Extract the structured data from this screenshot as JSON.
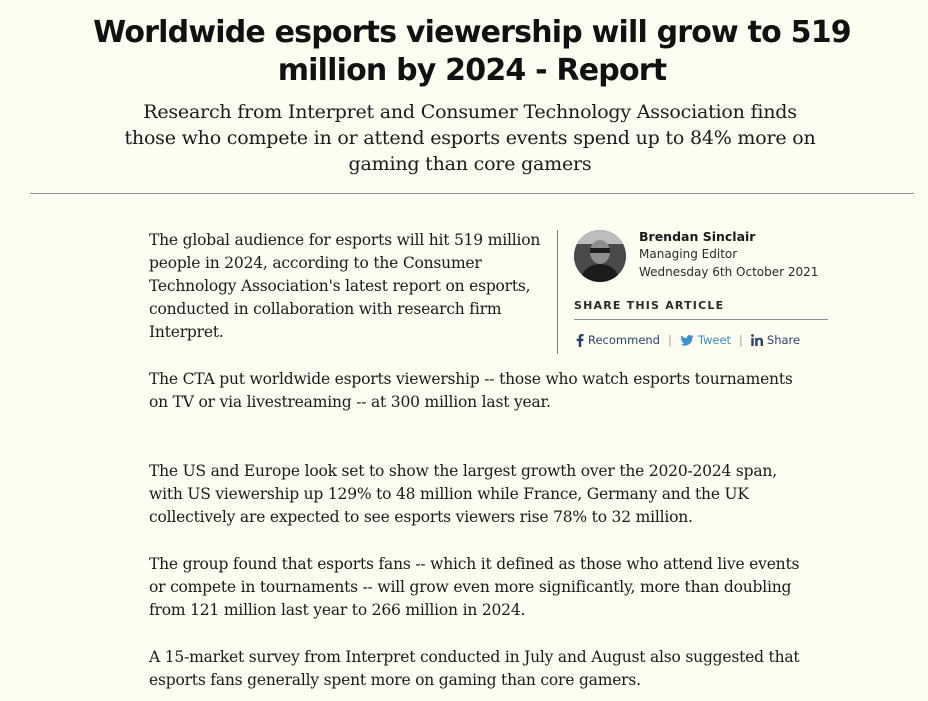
{
  "article": {
    "headline": "Worldwide esports viewership will grow to 519 million by 2024 - Report",
    "dek": "Research from Interpret and Consumer Technology Association finds those who compete in or attend esports events spend up to 84% more on gaming than core gamers",
    "paragraphs": [
      "The global audience for esports will hit 519 million people in 2024, according to the Consumer Technology Association's latest report on esports, conducted in collaboration with research firm Interpret.",
      "The CTA put worldwide esports viewership -- those who watch esports tournaments on TV or via livestreaming -- at 300 million last year.",
      "The US and Europe look set to show the largest growth over the 2020-2024 span, with US viewership up 129% to 48 million while France, Germany and the UK collectively are expected to see esports viewers rise 78% to 32 million.",
      "The group found that esports fans -- which it defined as those who attend live events or compete in tournaments -- will grow even more significantly, more than doubling from 121 million last year to 266 million in 2024.",
      "A 15-market survey from Interpret conducted in July and August also suggested that esports fans generally spent more on gaming than core gamers."
    ]
  },
  "byline": {
    "author_name": "Brendan Sinclair",
    "author_role": "Managing Editor",
    "date": "Wednesday 6th October 2021"
  },
  "share": {
    "heading": "SHARE THIS ARTICLE",
    "separator": "|",
    "buttons": [
      {
        "label": "Recommend",
        "icon": "facebook-icon",
        "color": "#2a4470"
      },
      {
        "label": "Tweet",
        "icon": "twitter-icon",
        "color": "#3b8ed8"
      },
      {
        "label": "Share",
        "icon": "linkedin-icon",
        "color": "#2a4470"
      }
    ]
  }
}
